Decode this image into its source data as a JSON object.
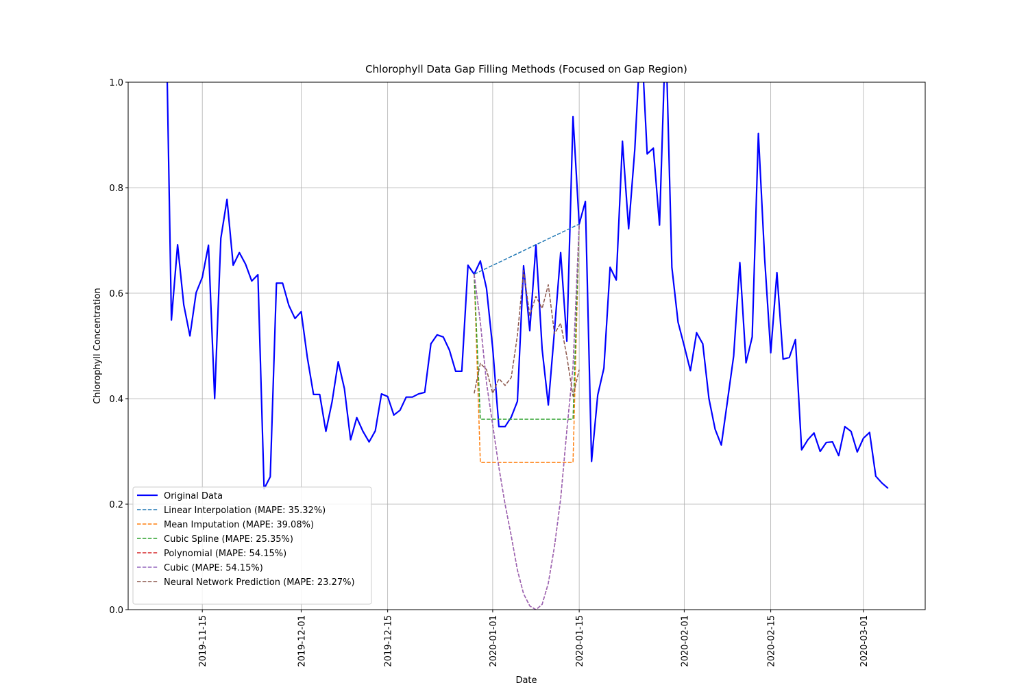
{
  "chart_data": {
    "type": "line",
    "title": "Chlorophyll Data Gap Filling Methods (Focused on Gap Region)",
    "x_label": "Date",
    "y_label": "Chlorophyll Concentration",
    "xlim": [
      "2019-11-03",
      "2020-03-11"
    ],
    "xticks": [
      "2019-11-15",
      "2019-12-01",
      "2019-12-15",
      "2020-01-01",
      "2020-01-15",
      "2020-02-01",
      "2020-02-15",
      "2020-03-01"
    ],
    "ylim": [
      0,
      1
    ],
    "yticks": [
      {
        "value": 0,
        "label": "0.0"
      },
      0.2,
      0.4,
      0.6,
      0.8,
      {
        "value": 1,
        "label": "1.0"
      }
    ],
    "grid": true,
    "legend": "lower left",
    "series": [
      {
        "name": "Original Data",
        "color": "#0000ff",
        "linestyle": "solid",
        "x": [
          "2019-11-09",
          "2019-11-10",
          "2019-11-11",
          "2019-11-12",
          "2019-11-13",
          "2019-11-14",
          "2019-11-15",
          "2019-11-16",
          "2019-11-17",
          "2019-11-18",
          "2019-11-19",
          "2019-11-20",
          "2019-11-21",
          "2019-11-22",
          "2019-11-23",
          "2019-11-24",
          "2019-11-25",
          "2019-11-26",
          "2019-11-27",
          "2019-11-28",
          "2019-11-29",
          "2019-11-30",
          "2019-12-01",
          "2019-12-02",
          "2019-12-03",
          "2019-12-04",
          "2019-12-05",
          "2019-12-06",
          "2019-12-07",
          "2019-12-08",
          "2019-12-09",
          "2019-12-10",
          "2019-12-11",
          "2019-12-12",
          "2019-12-13",
          "2019-12-14",
          "2019-12-15",
          "2019-12-16",
          "2019-12-17",
          "2019-12-18",
          "2019-12-19",
          "2019-12-20",
          "2019-12-21",
          "2019-12-22",
          "2019-12-23",
          "2019-12-24",
          "2019-12-25",
          "2019-12-26",
          "2019-12-27",
          "2019-12-28",
          "2019-12-29",
          "2019-12-30",
          "2019-12-31",
          "2020-01-01",
          "2020-01-02",
          "2020-01-03",
          "2020-01-04",
          "2020-01-05",
          "2020-01-06",
          "2020-01-07",
          "2020-01-08",
          "2020-01-09",
          "2020-01-10",
          "2020-01-11",
          "2020-01-12",
          "2020-01-13",
          "2020-01-14",
          "2020-01-15",
          "2020-01-16",
          "2020-01-17",
          "2020-01-18",
          "2020-01-19",
          "2020-01-20",
          "2020-01-21",
          "2020-01-22",
          "2020-01-23",
          "2020-01-24",
          "2020-01-25",
          "2020-01-26",
          "2020-01-27",
          "2020-01-28",
          "2020-01-29",
          "2020-01-30",
          "2020-01-31",
          "2020-02-01",
          "2020-02-02",
          "2020-02-03",
          "2020-02-04",
          "2020-02-05",
          "2020-02-06",
          "2020-02-07",
          "2020-02-08",
          "2020-02-09",
          "2020-02-10",
          "2020-02-11",
          "2020-02-12",
          "2020-02-13",
          "2020-02-14",
          "2020-02-15",
          "2020-02-16",
          "2020-02-17",
          "2020-02-18",
          "2020-02-19",
          "2020-02-20",
          "2020-02-21",
          "2020-02-22",
          "2020-02-23",
          "2020-02-24",
          "2020-02-25",
          "2020-02-26",
          "2020-02-27",
          "2020-02-28",
          "2020-02-29",
          "2020-03-01",
          "2020-03-02",
          "2020-03-03",
          "2020-03-04",
          "2020-03-05"
        ],
        "values": [
          1.22,
          0.549,
          0.692,
          0.578,
          0.519,
          0.601,
          0.63,
          0.691,
          0.4,
          0.704,
          0.778,
          0.653,
          0.677,
          0.655,
          0.623,
          0.635,
          0.229,
          0.252,
          0.619,
          0.619,
          0.577,
          0.552,
          0.565,
          0.478,
          0.408,
          0.408,
          0.338,
          0.394,
          0.47,
          0.419,
          0.322,
          0.364,
          0.338,
          0.318,
          0.339,
          0.409,
          0.404,
          0.369,
          0.378,
          0.403,
          0.403,
          0.409,
          0.412,
          0.504,
          0.521,
          0.517,
          0.492,
          0.452,
          0.452,
          0.653,
          0.636,
          0.661,
          0.609,
          0.496,
          0.347,
          0.347,
          0.365,
          0.395,
          0.652,
          0.529,
          0.692,
          0.494,
          0.388,
          0.529,
          0.677,
          0.509,
          0.935,
          0.731,
          0.774,
          0.281,
          0.407,
          0.458,
          0.649,
          0.625,
          0.888,
          0.722,
          0.873,
          1.1,
          0.864,
          0.875,
          0.729,
          1.1,
          0.649,
          0.545,
          0.5,
          0.453,
          0.525,
          0.504,
          0.4,
          0.342,
          0.312,
          0.396,
          0.481,
          0.658,
          0.468,
          0.517,
          0.903,
          0.669,
          0.487,
          0.639,
          0.475,
          0.478,
          0.512,
          0.303,
          0.322,
          0.335,
          0.3,
          0.317,
          0.318,
          0.292,
          0.347,
          0.338,
          0.299,
          0.325,
          0.336,
          0.253,
          0.24,
          0.23
        ]
      },
      {
        "name": "Linear Interpolation (MAPE: 35.32%)",
        "color": "#1f77b4",
        "linestyle": "dashed",
        "x": [
          "2019-12-29",
          "2020-01-15"
        ],
        "values": [
          0.636,
          0.731
        ]
      },
      {
        "name": "Mean Imputation (MAPE: 39.08%)",
        "color": "#ff7f0e",
        "linestyle": "dashed",
        "x": [
          "2019-12-29",
          "2019-12-30",
          "2020-01-14",
          "2020-01-15"
        ],
        "values": [
          0.636,
          0.279,
          0.279,
          0.731
        ]
      },
      {
        "name": "Cubic Spline (MAPE: 25.35%)",
        "color": "#2ca02c",
        "linestyle": "dashed",
        "x": [
          "2019-12-29",
          "2019-12-30",
          "2020-01-14",
          "2020-01-15"
        ],
        "values": [
          0.636,
          0.361,
          0.361,
          0.731
        ]
      },
      {
        "name": "Polynomial (MAPE: 54.15%)",
        "color": "#d62728",
        "linestyle": "dashed",
        "x": [
          "2019-12-29",
          "2019-12-30",
          "2019-12-31",
          "2020-01-01",
          "2020-01-02",
          "2020-01-03",
          "2020-01-04",
          "2020-01-05",
          "2020-01-06",
          "2020-01-07",
          "2020-01-08",
          "2020-01-09",
          "2020-01-10",
          "2020-01-11",
          "2020-01-12",
          "2020-01-13",
          "2020-01-14",
          "2020-01-15"
        ],
        "values": [
          0.636,
          0.545,
          0.43,
          0.35,
          0.27,
          0.2,
          0.14,
          0.075,
          0.03,
          0.007,
          0,
          0.01,
          0.05,
          0.12,
          0.21,
          0.34,
          0.46,
          0.731
        ]
      },
      {
        "name": "Cubic (MAPE: 54.15%)",
        "color": "#9467bd",
        "linestyle": "dashed",
        "x": [
          "2019-12-29",
          "2019-12-30",
          "2019-12-31",
          "2020-01-01",
          "2020-01-02",
          "2020-01-03",
          "2020-01-04",
          "2020-01-05",
          "2020-01-06",
          "2020-01-07",
          "2020-01-08",
          "2020-01-09",
          "2020-01-10",
          "2020-01-11",
          "2020-01-12",
          "2020-01-13",
          "2020-01-14",
          "2020-01-15"
        ],
        "values": [
          0.636,
          0.545,
          0.43,
          0.35,
          0.27,
          0.2,
          0.14,
          0.075,
          0.03,
          0.007,
          0,
          0.01,
          0.05,
          0.12,
          0.21,
          0.34,
          0.46,
          0.731
        ]
      },
      {
        "name": "Neural Network Prediction (MAPE: 23.27%)",
        "color": "#8c564b",
        "linestyle": "dashed",
        "x": [
          "2019-12-29",
          "2019-12-30",
          "2019-12-31",
          "2020-01-01",
          "2020-01-02",
          "2020-01-03",
          "2020-01-04",
          "2020-01-05",
          "2020-01-06",
          "2020-01-07",
          "2020-01-08",
          "2020-01-09",
          "2020-01-10",
          "2020-01-11",
          "2020-01-12",
          "2020-01-13",
          "2020-01-14",
          "2020-01-15"
        ],
        "values": [
          0.41,
          0.467,
          0.455,
          0.41,
          0.438,
          0.425,
          0.44,
          0.52,
          0.643,
          0.558,
          0.594,
          0.571,
          0.616,
          0.523,
          0.543,
          0.48,
          0.405,
          0.455
        ]
      }
    ]
  }
}
